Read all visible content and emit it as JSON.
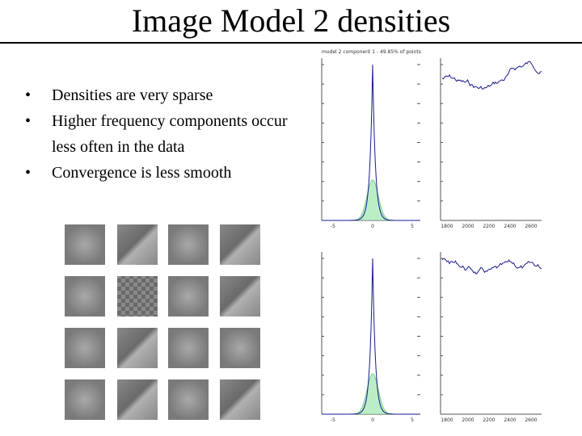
{
  "slide": {
    "title": "Image Model 2 densities",
    "bullets": [
      "Densities are very sparse",
      "Higher frequency components occur less often in the data",
      "Convergence is less smooth"
    ],
    "plots": {
      "caption": "model 2 component 1 - 49.85% of points",
      "density_xticks": [
        "-5",
        "0",
        "5"
      ],
      "trace_xticks": [
        "1800",
        "2000",
        "2200",
        "2400",
        "2600"
      ]
    }
  }
}
